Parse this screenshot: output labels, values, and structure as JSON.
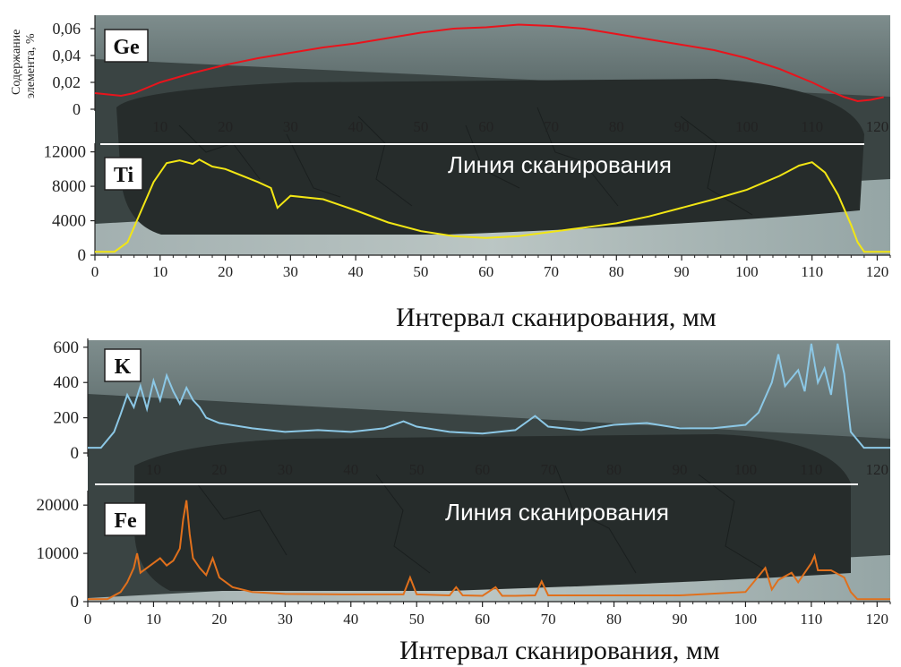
{
  "chart_data": [
    {
      "type": "line",
      "label": "Ge",
      "ylabel_lines": [
        "Содержание",
        "элемента, %"
      ],
      "ylim": [
        0,
        0.07
      ],
      "yticks": [
        "0",
        "0,02",
        "0,04",
        "0,06"
      ],
      "xlim": [
        0,
        122
      ],
      "xticks": [
        10,
        20,
        30,
        40,
        50,
        60,
        70,
        80,
        90,
        100,
        110,
        120
      ],
      "color": "#e8141c",
      "x": [
        0,
        2,
        4,
        6,
        8,
        10,
        15,
        20,
        25,
        30,
        35,
        40,
        45,
        50,
        55,
        60,
        65,
        70,
        75,
        80,
        85,
        90,
        95,
        100,
        105,
        110,
        113,
        115,
        117,
        119,
        121
      ],
      "y": [
        0.012,
        0.011,
        0.01,
        0.012,
        0.016,
        0.02,
        0.027,
        0.033,
        0.038,
        0.042,
        0.046,
        0.049,
        0.053,
        0.057,
        0.06,
        0.061,
        0.063,
        0.062,
        0.06,
        0.056,
        0.052,
        0.048,
        0.044,
        0.038,
        0.03,
        0.02,
        0.013,
        0.009,
        0.006,
        0.007,
        0.009
      ]
    },
    {
      "type": "line",
      "label": "Ti",
      "ylim": [
        0,
        13000
      ],
      "yticks": [
        "0",
        "4000",
        "8000",
        "12000"
      ],
      "xlim": [
        0,
        122
      ],
      "xticks": [
        0,
        10,
        20,
        30,
        40,
        50,
        60,
        70,
        80,
        90,
        100,
        110,
        120
      ],
      "color": "#f2e614",
      "annotation": "Линия сканирования",
      "x": [
        0,
        3,
        5,
        7,
        9,
        11,
        13,
        15,
        16,
        18,
        20,
        25,
        27,
        28,
        30,
        35,
        40,
        45,
        50,
        55,
        60,
        65,
        70,
        75,
        80,
        85,
        90,
        95,
        100,
        105,
        108,
        110,
        112,
        114,
        116,
        117,
        118,
        122
      ],
      "y": [
        400,
        400,
        1500,
        5000,
        8500,
        10700,
        11000,
        10600,
        11100,
        10300,
        10000,
        8500,
        7800,
        5500,
        6900,
        6500,
        5200,
        3800,
        2800,
        2200,
        2000,
        2200,
        2700,
        3200,
        3700,
        4500,
        5500,
        6500,
        7600,
        9200,
        10400,
        10800,
        9600,
        7000,
        3500,
        1500,
        400,
        400
      ]
    },
    {
      "type": "line",
      "label": "K",
      "ylim": [
        0,
        650
      ],
      "yticks": [
        "0",
        "200",
        "400",
        "600"
      ],
      "xlim": [
        0,
        122
      ],
      "xticks": [
        10,
        20,
        30,
        40,
        50,
        60,
        70,
        80,
        90,
        100,
        110,
        120
      ],
      "color": "#8cc8e6",
      "x": [
        0,
        2,
        4,
        5,
        6,
        7,
        8,
        9,
        10,
        11,
        12,
        13,
        14,
        15,
        16,
        17,
        18,
        20,
        25,
        30,
        35,
        40,
        45,
        48,
        50,
        55,
        60,
        65,
        68,
        70,
        75,
        80,
        85,
        90,
        95,
        100,
        102,
        104,
        105,
        106,
        108,
        109,
        110,
        111,
        112,
        113,
        114,
        115,
        116,
        118,
        122
      ],
      "y": [
        30,
        30,
        120,
        220,
        330,
        260,
        380,
        250,
        410,
        300,
        440,
        350,
        280,
        370,
        300,
        260,
        200,
        170,
        140,
        120,
        130,
        120,
        140,
        180,
        150,
        120,
        110,
        130,
        210,
        150,
        130,
        160,
        170,
        140,
        140,
        160,
        230,
        400,
        560,
        380,
        470,
        350,
        620,
        400,
        480,
        330,
        620,
        450,
        120,
        30,
        30
      ]
    },
    {
      "type": "line",
      "label": "Fe",
      "ylim": [
        0,
        23000
      ],
      "yticks": [
        "0",
        "10000",
        "20000"
      ],
      "xlim": [
        0,
        122
      ],
      "xticks": [
        0,
        10,
        20,
        30,
        40,
        50,
        60,
        70,
        80,
        90,
        100,
        110,
        120
      ],
      "color": "#e0701c",
      "annotation": "Линия сканирования",
      "x": [
        0,
        3,
        5,
        6,
        7,
        7.5,
        8,
        9,
        10,
        11,
        12,
        13,
        14,
        14.5,
        15,
        15.5,
        16,
        17,
        18,
        19,
        20,
        22,
        25,
        30,
        40,
        48,
        49,
        50,
        55,
        56,
        57,
        60,
        62,
        63,
        65,
        68,
        69,
        70,
        75,
        80,
        90,
        100,
        103,
        104,
        105,
        107,
        108,
        110,
        110.5,
        111,
        113,
        115,
        116,
        117,
        122
      ],
      "y": [
        500,
        500,
        2000,
        4000,
        7000,
        10000,
        6000,
        7000,
        8000,
        9000,
        7500,
        8500,
        11000,
        17000,
        21000,
        14000,
        9000,
        7000,
        5500,
        9000,
        5000,
        3000,
        2000,
        1600,
        1500,
        1500,
        5000,
        1500,
        1300,
        3000,
        1300,
        1200,
        3000,
        1200,
        1200,
        1300,
        4200,
        1300,
        1300,
        1300,
        1300,
        2000,
        7000,
        2500,
        4500,
        6000,
        4000,
        8000,
        9500,
        6500,
        6500,
        5000,
        2000,
        500,
        500
      ]
    }
  ],
  "xlabel": "Интервал сканирования, мм"
}
